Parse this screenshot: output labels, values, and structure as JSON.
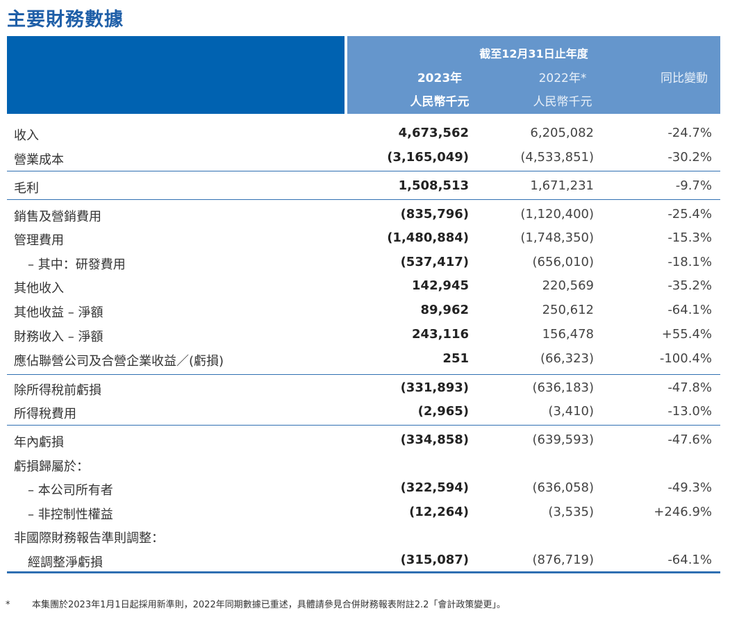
{
  "title": "主要財務數據",
  "header": {
    "period": "截至12月31日止年度",
    "col_2023": "2023年",
    "col_2022": "2022年*",
    "col_change": "同比變動",
    "unit_2023": "人民幣千元",
    "unit_2022": "人民幣千元"
  },
  "rows": [
    {
      "label": "收入",
      "v2023": "4,673,562",
      "v2022": "6,205,082",
      "change": "-24.7%"
    },
    {
      "label": "營業成本",
      "v2023": "(3,165,049)",
      "v2022": "(4,533,851)",
      "change": "-30.2%"
    },
    {
      "label": "毛利",
      "v2023": "1,508,513",
      "v2022": "1,671,231",
      "change": "-9.7%"
    },
    {
      "label": "銷售及營銷費用",
      "v2023": "(835,796)",
      "v2022": "(1,120,400)",
      "change": "-25.4%"
    },
    {
      "label": "管理費用",
      "v2023": "(1,480,884)",
      "v2022": "(1,748,350)",
      "change": "-15.3%"
    },
    {
      "label": "– 其中：研發費用",
      "v2023": "(537,417)",
      "v2022": "(656,010)",
      "change": "-18.1%"
    },
    {
      "label": "其他收入",
      "v2023": "142,945",
      "v2022": "220,569",
      "change": "-35.2%"
    },
    {
      "label": "其他收益 – 淨額",
      "v2023": "89,962",
      "v2022": "250,612",
      "change": "-64.1%"
    },
    {
      "label": "財務收入 – 淨額",
      "v2023": "243,116",
      "v2022": "156,478",
      "change": "+55.4%"
    },
    {
      "label": "應佔聯營公司及合營企業收益／(虧損)",
      "v2023": "251",
      "v2022": "(66,323)",
      "change": "-100.4%"
    },
    {
      "label": "除所得稅前虧損",
      "v2023": "(331,893)",
      "v2022": "(636,183)",
      "change": "-47.8%"
    },
    {
      "label": "所得稅費用",
      "v2023": "(2,965)",
      "v2022": "(3,410)",
      "change": "-13.0%"
    },
    {
      "label": "年內虧損",
      "v2023": "(334,858)",
      "v2022": "(639,593)",
      "change": "-47.6%"
    },
    {
      "label": "虧損歸屬於：",
      "v2023": "",
      "v2022": "",
      "change": ""
    },
    {
      "label": "– 本公司所有者",
      "v2023": "(322,594)",
      "v2022": "(636,058)",
      "change": "-49.3%"
    },
    {
      "label": "– 非控制性權益",
      "v2023": "(12,264)",
      "v2022": "(3,535)",
      "change": "+246.9%"
    },
    {
      "label": "非國際財務報告準則調整：",
      "v2023": "",
      "v2022": "",
      "change": ""
    },
    {
      "label": "經調整淨虧損",
      "v2023": "(315,087)",
      "v2022": "(876,719)",
      "change": "-64.1%"
    }
  ],
  "footnote": {
    "mark": "*",
    "text": "本集團於2023年1月1日起採用新準則，2022年同期數據已重述，具體請參見合併財務報表附註2.2「會計政策變更」。"
  }
}
